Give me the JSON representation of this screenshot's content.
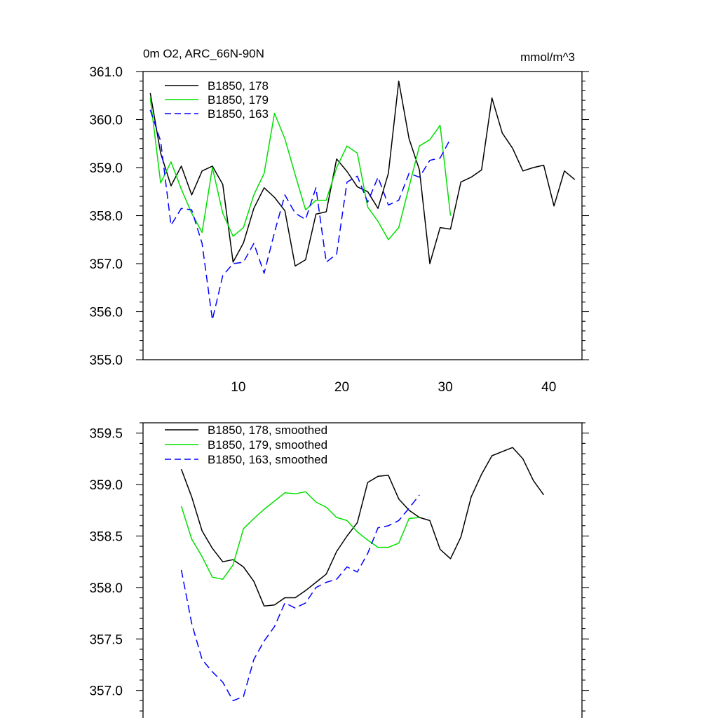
{
  "chart_data": [
    {
      "type": "line",
      "title_left": "0m O2, ARC_66N-90N",
      "title_right": "mmol/m^3",
      "xlim": [
        0.8,
        43.2
      ],
      "ylim": [
        355.0,
        361.0
      ],
      "xticks": [
        10,
        20,
        30,
        40
      ],
      "xtick_labels": [
        "10",
        "20",
        "30",
        "40"
      ],
      "yticks": [
        355.0,
        356.0,
        357.0,
        358.0,
        359.0,
        360.0,
        361.0
      ],
      "ytick_labels": [
        "355.0",
        "356.0",
        "357.0",
        "358.0",
        "359.0",
        "360.0",
        "361.0"
      ],
      "x_minor_step": 2,
      "y_minor_step": 0.2,
      "series": [
        {
          "name": "B1850, 178",
          "label": "B1850, 178",
          "color": "#000000",
          "dash": "solid",
          "x": [
            1.5,
            2.5,
            3.5,
            4.5,
            5.5,
            6.5,
            7.5,
            8.5,
            9.5,
            10.5,
            11.5,
            12.5,
            13.5,
            14.5,
            15.5,
            16.5,
            17.5,
            18.5,
            19.5,
            20.5,
            21.5,
            22.5,
            23.5,
            24.5,
            25.5,
            26.5,
            27.5,
            28.5,
            29.5,
            30.5,
            31.5,
            32.5,
            33.5,
            34.5,
            35.5,
            36.5,
            37.5,
            38.5,
            39.5,
            40.5,
            41.5,
            42.5
          ],
          "values": [
            360.55,
            359.3,
            358.62,
            359.03,
            358.43,
            358.93,
            359.03,
            358.65,
            357.03,
            357.43,
            358.15,
            358.58,
            358.38,
            358.1,
            356.95,
            357.08,
            358.03,
            358.08,
            359.18,
            358.92,
            358.6,
            358.5,
            358.15,
            358.88,
            360.8,
            359.6,
            358.95,
            357.0,
            357.75,
            357.72,
            358.7,
            358.8,
            358.95,
            360.45,
            359.72,
            359.4,
            358.93,
            359.0,
            359.05,
            358.2,
            358.93,
            358.75
          ]
        },
        {
          "name": "B1850, 179",
          "label": "B1850, 179",
          "color": "#00e000",
          "dash": "solid",
          "x": [
            1.5,
            2.5,
            3.5,
            4.5,
            5.5,
            6.5,
            7.5,
            8.5,
            9.5,
            10.5,
            11.5,
            12.5,
            13.5,
            14.5,
            15.5,
            16.5,
            17.5,
            18.5,
            19.5,
            20.5,
            21.5,
            22.5,
            23.5,
            24.5,
            25.5,
            26.5,
            27.5,
            28.5,
            29.5,
            30.5
          ],
          "values": [
            360.45,
            358.68,
            359.12,
            358.55,
            358.05,
            357.65,
            359.0,
            358.05,
            357.57,
            357.75,
            358.43,
            358.88,
            360.13,
            359.6,
            358.85,
            358.12,
            358.32,
            358.32,
            359.0,
            359.45,
            359.3,
            358.18,
            357.88,
            357.5,
            357.75,
            358.6,
            359.45,
            359.58,
            359.88,
            358.0
          ]
        },
        {
          "name": "B1850, 163",
          "label": "B1850, 163",
          "color": "#0000ff",
          "dash": "dashed",
          "x": [
            1.5,
            2.5,
            3.5,
            4.5,
            5.5,
            6.5,
            7.5,
            8.5,
            9.5,
            10.5,
            11.5,
            12.5,
            13.5,
            14.5,
            15.5,
            16.5,
            17.5,
            18.5,
            19.5,
            20.5,
            21.5,
            22.5,
            23.5,
            24.5,
            25.5,
            26.5,
            27.5,
            28.5,
            29.5,
            30.5
          ],
          "values": [
            360.2,
            359.55,
            357.8,
            358.15,
            358.12,
            357.42,
            355.83,
            356.75,
            357.0,
            357.03,
            357.42,
            356.8,
            357.65,
            358.43,
            358.05,
            357.92,
            358.58,
            357.03,
            357.2,
            358.7,
            358.82,
            358.28,
            358.8,
            358.22,
            358.32,
            358.88,
            358.8,
            359.15,
            359.2,
            359.6
          ]
        }
      ]
    },
    {
      "type": "line",
      "xlim": [
        0.8,
        43.2
      ],
      "ylim": [
        356.8,
        359.6
      ],
      "xticks": [
        10,
        20,
        30,
        40
      ],
      "yticks": [
        357.0,
        357.5,
        358.0,
        358.5,
        359.0,
        359.5
      ],
      "ytick_labels": [
        "357.0",
        "357.5",
        "358.0",
        "358.5",
        "359.0",
        "359.5"
      ],
      "x_minor_step": 2,
      "y_minor_step": 0.1,
      "series": [
        {
          "name": "B1850, 178, smoothed",
          "label": "B1850, 178, smoothed",
          "color": "#000000",
          "dash": "solid",
          "x": [
            4.5,
            5.5,
            6.5,
            7.5,
            8.5,
            9.5,
            10.5,
            11.5,
            12.5,
            13.5,
            14.5,
            15.5,
            16.5,
            17.5,
            18.5,
            19.5,
            20.5,
            21.5,
            22.5,
            23.5,
            24.5,
            25.5,
            26.5,
            27.5,
            28.5,
            29.5,
            30.5,
            31.5,
            32.5,
            33.5,
            34.5,
            35.5,
            36.5,
            37.5,
            38.5,
            39.5
          ],
          "values": [
            359.15,
            358.88,
            358.55,
            358.38,
            358.25,
            358.27,
            358.2,
            358.06,
            357.82,
            357.83,
            357.9,
            357.9,
            357.97,
            358.05,
            358.13,
            358.35,
            358.5,
            358.63,
            359.02,
            359.08,
            359.09,
            358.86,
            358.75,
            358.68,
            358.65,
            358.37,
            358.28,
            358.49,
            358.88,
            359.1,
            359.28,
            359.32,
            359.36,
            359.25,
            359.04,
            358.9
          ]
        },
        {
          "name": "B1850, 179, smoothed",
          "label": "B1850, 179, smoothed",
          "color": "#00e000",
          "dash": "solid",
          "x": [
            4.5,
            5.5,
            6.5,
            7.5,
            8.5,
            9.5,
            10.5,
            11.5,
            12.5,
            13.5,
            14.5,
            15.5,
            16.5,
            17.5,
            18.5,
            19.5,
            20.5,
            21.5,
            22.5,
            23.5,
            24.5,
            25.5,
            26.5,
            27.5
          ],
          "values": [
            358.79,
            358.47,
            358.3,
            358.1,
            358.08,
            358.22,
            358.57,
            358.67,
            358.76,
            358.84,
            358.92,
            358.91,
            358.93,
            358.83,
            358.78,
            358.68,
            358.65,
            358.54,
            358.46,
            358.39,
            358.39,
            358.43,
            358.67,
            358.68
          ]
        },
        {
          "name": "B1850, 163, smoothed",
          "label": "B1850, 163, smoothed",
          "color": "#0000ff",
          "dash": "dashed",
          "x": [
            4.5,
            5.5,
            6.5,
            7.5,
            8.5,
            9.5,
            10.5,
            11.5,
            12.5,
            13.5,
            14.5,
            15.5,
            16.5,
            17.5,
            18.5,
            19.5,
            20.5,
            21.5,
            22.5,
            23.5,
            24.5,
            25.5,
            26.5,
            27.5
          ],
          "values": [
            358.17,
            357.65,
            357.3,
            357.18,
            357.08,
            356.9,
            356.94,
            357.3,
            357.48,
            357.62,
            357.85,
            357.8,
            357.85,
            358.0,
            358.05,
            358.08,
            358.2,
            358.15,
            358.33,
            358.58,
            358.6,
            358.65,
            358.77,
            358.9
          ]
        }
      ]
    }
  ]
}
